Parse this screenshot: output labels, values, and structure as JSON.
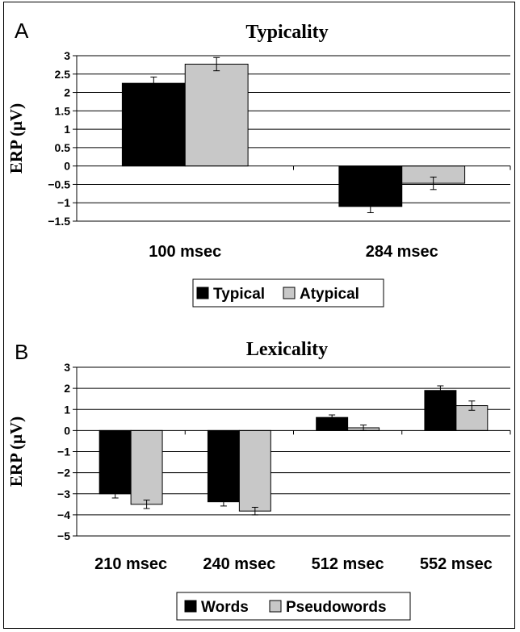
{
  "colors": {
    "series0": "#000000",
    "series1": "#c8c8c8",
    "stroke": "#000000"
  },
  "chart_data": [
    {
      "type": "bar",
      "panel": "A",
      "title": "Typicality",
      "ylabel": "ERP (μV)",
      "xlabel": "",
      "categories": [
        "100 msec",
        "284 msec"
      ],
      "series": [
        {
          "name": "Typical",
          "values": [
            2.25,
            -1.1
          ],
          "errors": [
            0.17,
            0.17
          ]
        },
        {
          "name": "Atypical",
          "values": [
            2.77,
            -0.47
          ],
          "errors": [
            0.18,
            0.17
          ]
        }
      ],
      "ylim": [
        -1.5,
        3
      ],
      "yticks": [
        3,
        2.5,
        2,
        1.5,
        1,
        0.5,
        0,
        -0.5,
        -1,
        -1.5
      ],
      "ytick_labels": [
        "3",
        "2.5",
        "2",
        "1.5",
        "1",
        "0.5",
        "0",
        "−0.5",
        "−1",
        "−1.5"
      ],
      "grid": true,
      "legend": "bottom"
    },
    {
      "type": "bar",
      "panel": "B",
      "title": "Lexicality",
      "ylabel": "ERP (μV)",
      "xlabel": "",
      "categories": [
        "210 msec",
        "240 msec",
        "512 msec",
        "552 msec"
      ],
      "series": [
        {
          "name": "Words",
          "values": [
            -3.0,
            -3.38,
            0.62,
            1.9
          ],
          "errors": [
            0.2,
            0.2,
            0.12,
            0.22
          ]
        },
        {
          "name": "Pseudowords",
          "values": [
            -3.5,
            -3.82,
            0.13,
            1.18
          ],
          "errors": [
            0.2,
            0.18,
            0.13,
            0.22
          ]
        }
      ],
      "ylim": [
        -5,
        3
      ],
      "yticks": [
        3,
        2,
        1,
        0,
        -1,
        -2,
        -3,
        -4,
        -5
      ],
      "ytick_labels": [
        "3",
        "2",
        "1",
        "0",
        "−1",
        "−2",
        "−3",
        "−4",
        "−5"
      ],
      "grid": true,
      "legend": "bottom"
    }
  ]
}
